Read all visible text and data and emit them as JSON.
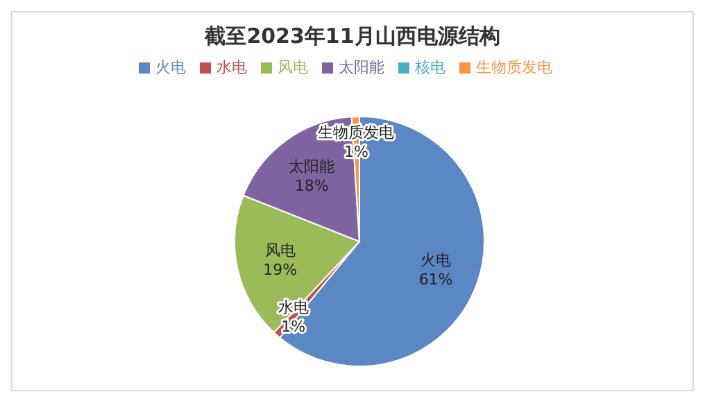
{
  "chart_data": {
    "type": "pie",
    "title": "截至2023年11月山西电源结构",
    "categories": [
      "火电",
      "水电",
      "风电",
      "太阳能",
      "核电",
      "生物质发电"
    ],
    "values": [
      61,
      1,
      19,
      18,
      0,
      1
    ],
    "colors": [
      "#5b87c5",
      "#c0504d",
      "#9bbb59",
      "#8064a2",
      "#4bacc6",
      "#f79646"
    ],
    "value_labels": [
      "61%",
      "1%",
      "19%",
      "18%",
      null,
      "1%"
    ],
    "legend": "top"
  }
}
